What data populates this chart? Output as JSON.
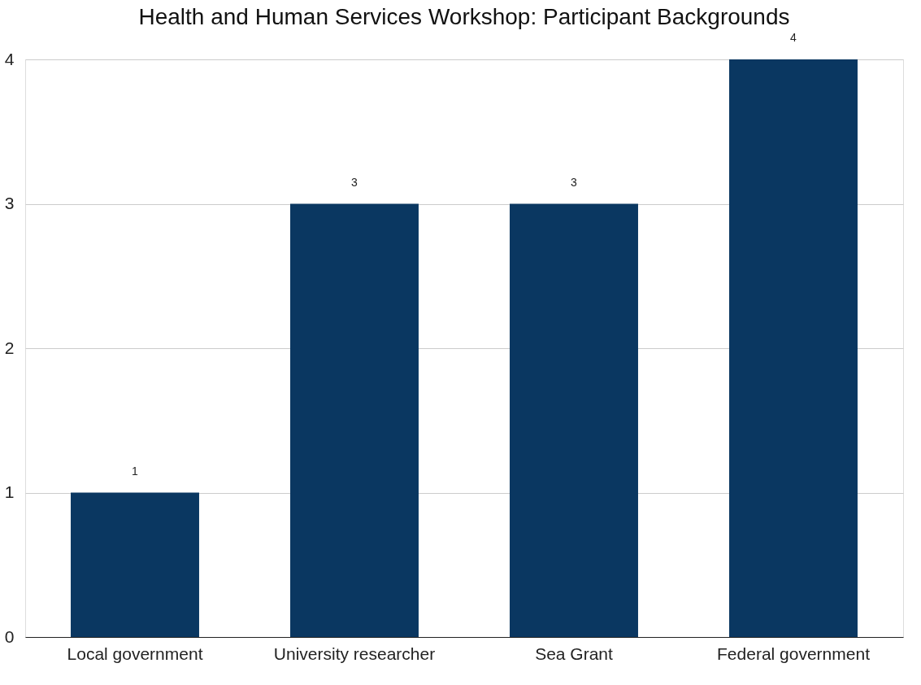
{
  "chart_data": {
    "type": "bar",
    "title": "Health and Human Services Workshop: Participant Backgrounds",
    "categories": [
      "Local government",
      "University researcher",
      "Sea Grant",
      "Federal government"
    ],
    "values": [
      1,
      3,
      3,
      4
    ],
    "color": "#0a3761",
    "ylim": [
      0,
      4
    ],
    "yticks": [
      0,
      1,
      2,
      3,
      4
    ],
    "grid": "y",
    "data_labels": true
  }
}
